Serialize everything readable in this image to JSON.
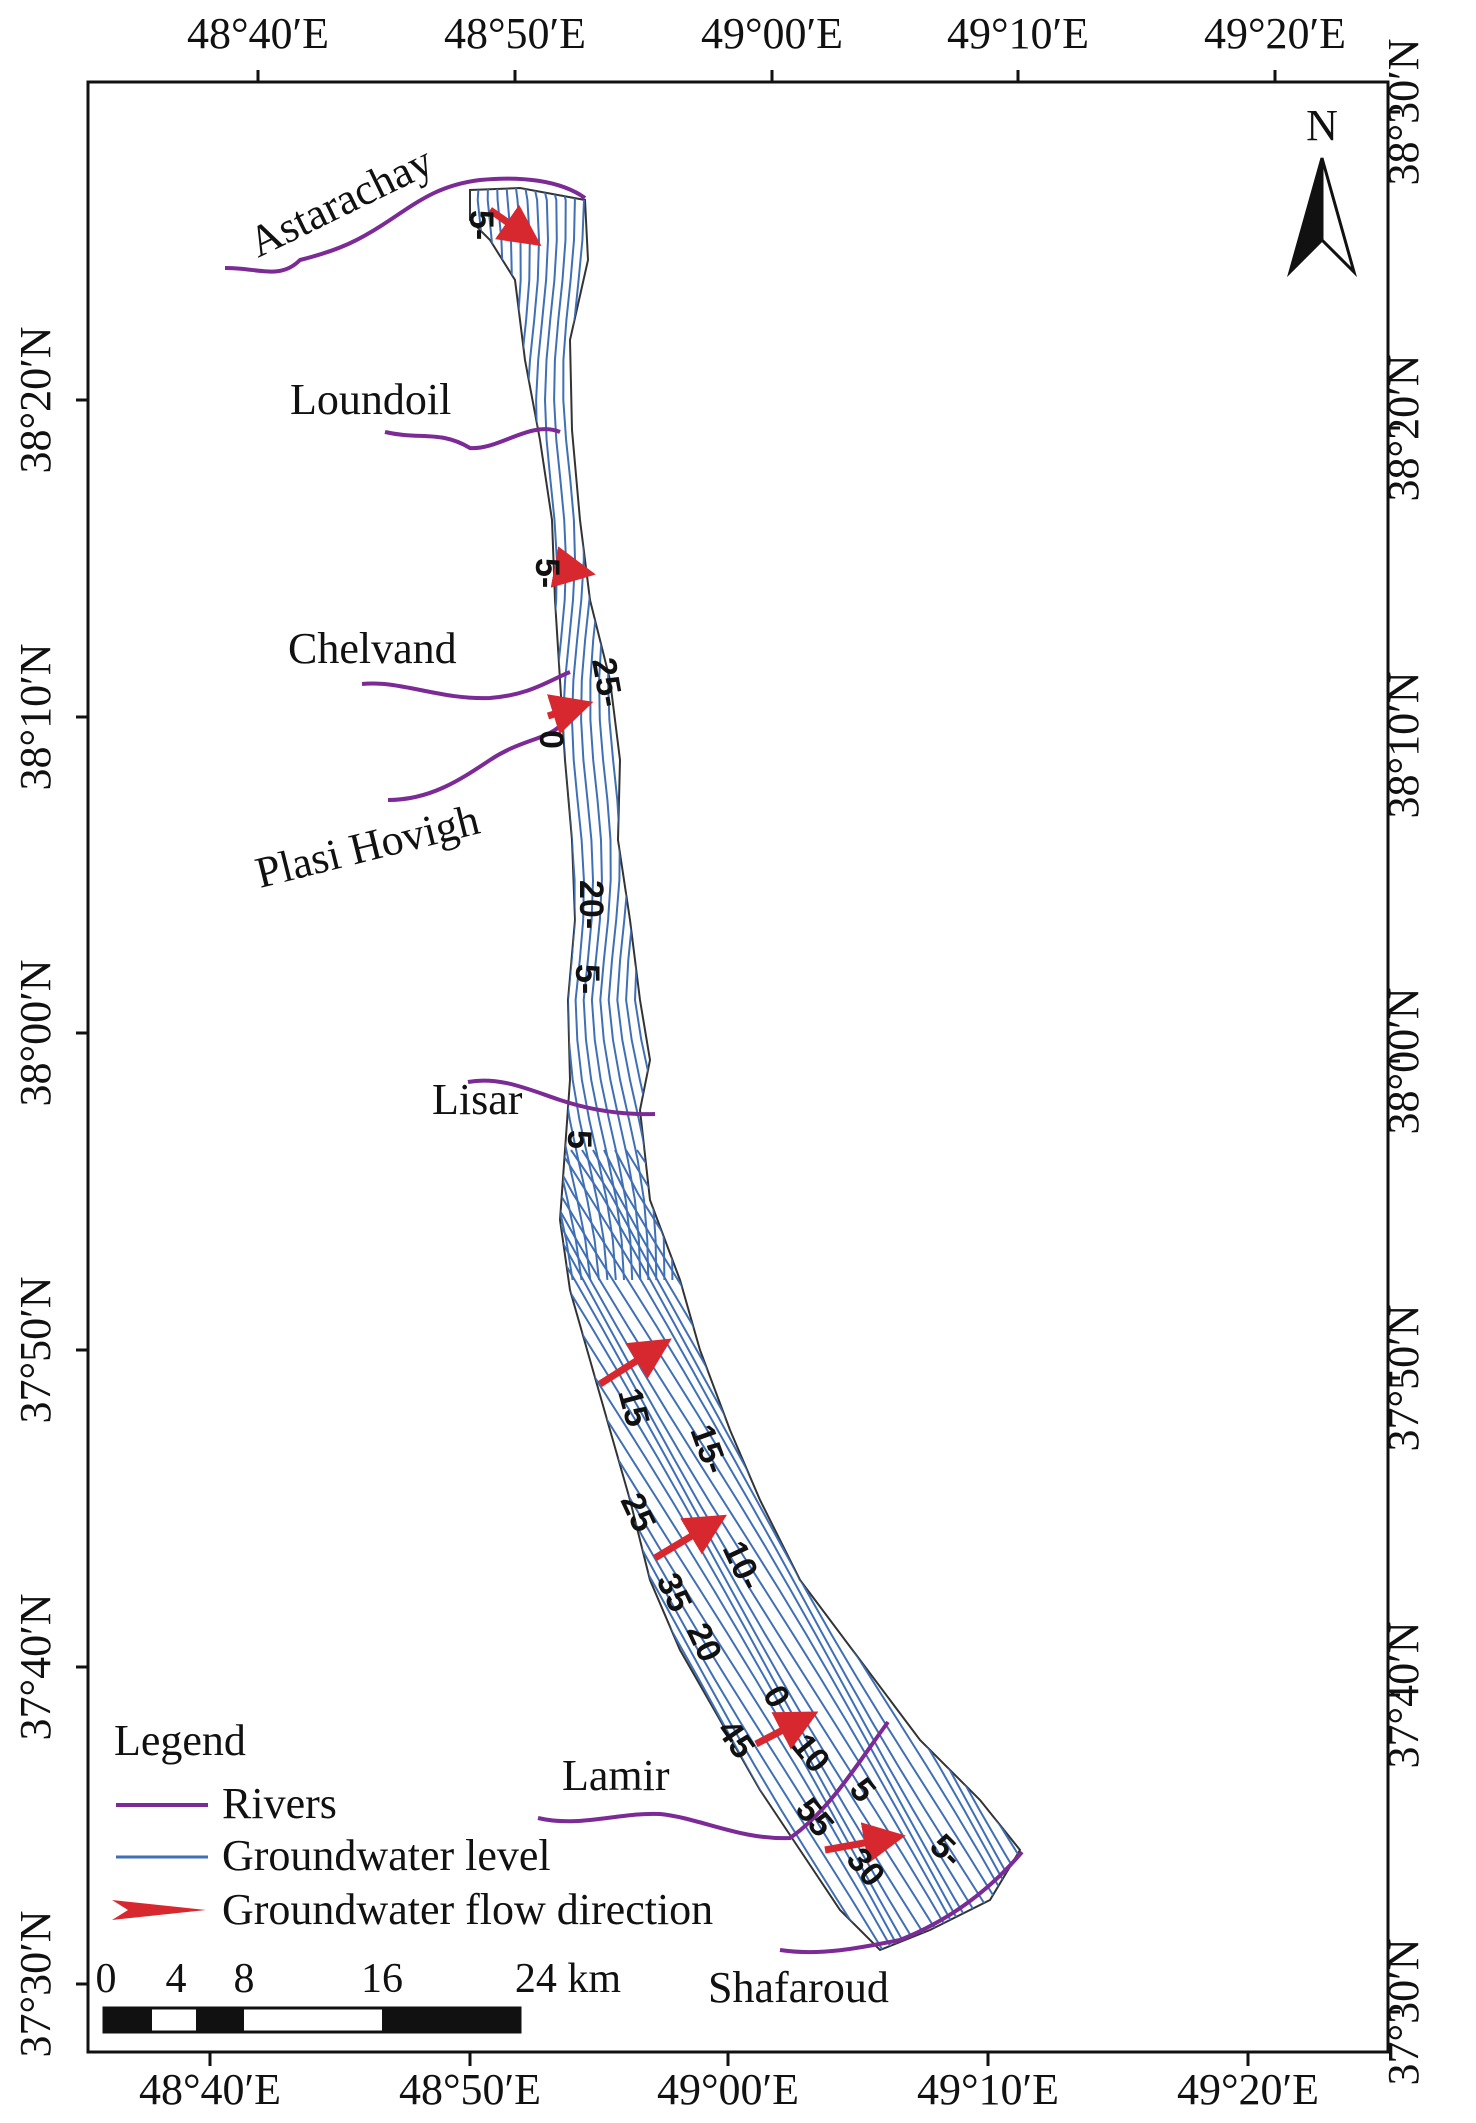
{
  "top_axis": {
    "ticks": [
      "48°40′E",
      "48°50′E",
      "49°00′E",
      "49°10′E",
      "49°20′E"
    ]
  },
  "bottom_axis": {
    "ticks": [
      "48°40′E",
      "48°50′E",
      "49°00′E",
      "49°10′E",
      "49°20′E"
    ]
  },
  "left_axis": {
    "ticks": [
      "38°20′N",
      "38°10′N",
      "38°00′N",
      "37°50′N",
      "37°40′N",
      "37°30′N"
    ]
  },
  "right_axis": {
    "ticks": [
      "38°30′N",
      "38°20′N",
      "38°10′N",
      "38°00′N",
      "37°50′N",
      "37°40′N",
      "37°30′N"
    ]
  },
  "north_arrow": {
    "label": "N"
  },
  "rivers": {
    "astarachay": "Astarachay",
    "loundoil": "Loundoil",
    "chelvand": "Chelvand",
    "plasi_hovigh": "Plasi Hovigh",
    "lisar": "Lisar",
    "lamir": "Lamir",
    "shafaroud": "Shafaroud"
  },
  "contour_labels": [
    "5-",
    "5-",
    "25-",
    "0",
    "20-",
    "5-",
    "5",
    "15",
    "15-",
    "25",
    "10-",
    "35",
    "20",
    "0",
    "45",
    "10",
    "5",
    "55",
    "30",
    "5-"
  ],
  "legend": {
    "title": "Legend",
    "items": [
      {
        "label": "Rivers",
        "color": "#7b2a96"
      },
      {
        "label": "Groundwater level",
        "color": "#3f6fb5"
      },
      {
        "label": "Groundwater flow direction",
        "color": "#d7282f"
      }
    ]
  },
  "scale_bar": {
    "labels": [
      "0",
      "4",
      "8",
      "16",
      "24 km"
    ]
  },
  "colors": {
    "river": "#7b2a96",
    "contour": "#3f6fb5",
    "arrow": "#d7282f",
    "frame": "#111111"
  }
}
